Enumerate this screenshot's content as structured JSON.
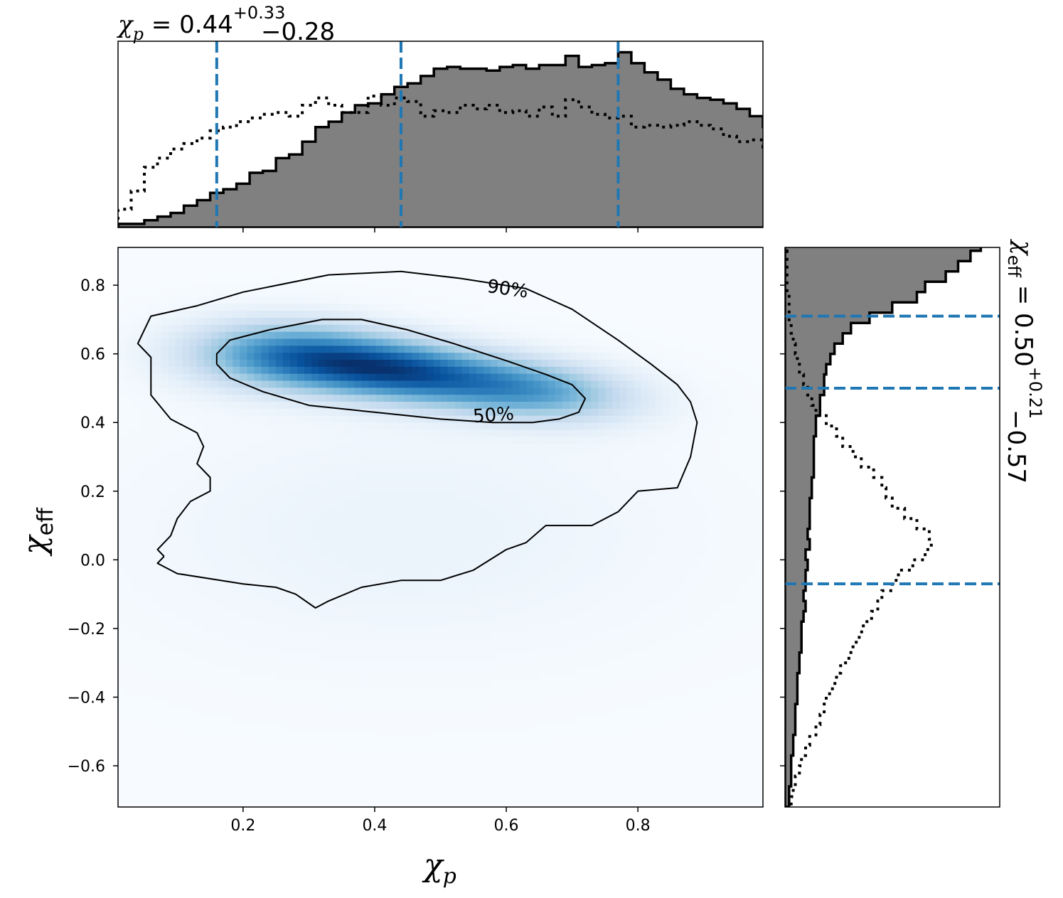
{
  "colors": {
    "histogram_fill": "#808080",
    "histogram_edge": "#000000",
    "prior_line": "#000000",
    "quantile_line": "#1f77b4",
    "density_cmap": [
      "#f7fbff",
      "#deebf7",
      "#c6dbef",
      "#9ecae1",
      "#6baed6",
      "#4292c6",
      "#2171b5",
      "#08519c",
      "#08306b"
    ]
  },
  "chart_data": [
    {
      "name": "joint",
      "type": "heatmap",
      "xlabel_main": "χ",
      "xlabel_sub": "p",
      "ylabel_main": "χ",
      "ylabel_sub": "eff",
      "xlim": [
        0.01,
        0.99
      ],
      "ylim": [
        -0.72,
        0.91
      ],
      "xticks": [
        0.2,
        0.4,
        0.6,
        0.8
      ],
      "yticks": [
        -0.6,
        -0.4,
        -0.2,
        0.0,
        0.2,
        0.4,
        0.6,
        0.8
      ],
      "ytick_labels": [
        "−0.6",
        "−0.4",
        "−0.2",
        "0.0",
        "0.2",
        "0.4",
        "0.6",
        "0.8"
      ],
      "xtick_labels": [
        "0.2",
        "0.4",
        "0.6",
        "0.8"
      ],
      "contours": [
        {
          "label": "90%",
          "label_at": [
            0.57,
            0.78
          ],
          "points": [
            [
              0.08,
              0.01
            ],
            [
              0.07,
              -0.01
            ],
            [
              0.1,
              -0.04
            ],
            [
              0.2,
              -0.07
            ],
            [
              0.25,
              -0.08
            ],
            [
              0.28,
              -0.1
            ],
            [
              0.31,
              -0.14
            ],
            [
              0.33,
              -0.12
            ],
            [
              0.38,
              -0.08
            ],
            [
              0.44,
              -0.06
            ],
            [
              0.5,
              -0.06
            ],
            [
              0.55,
              -0.03
            ],
            [
              0.6,
              0.03
            ],
            [
              0.63,
              0.05
            ],
            [
              0.66,
              0.1
            ],
            [
              0.73,
              0.1
            ],
            [
              0.77,
              0.14
            ],
            [
              0.8,
              0.2
            ],
            [
              0.86,
              0.21
            ],
            [
              0.88,
              0.3
            ],
            [
              0.89,
              0.4
            ],
            [
              0.88,
              0.46
            ],
            [
              0.86,
              0.51
            ],
            [
              0.82,
              0.57
            ],
            [
              0.77,
              0.64
            ],
            [
              0.7,
              0.73
            ],
            [
              0.63,
              0.79
            ],
            [
              0.53,
              0.82
            ],
            [
              0.44,
              0.84
            ],
            [
              0.33,
              0.83
            ],
            [
              0.2,
              0.78
            ],
            [
              0.13,
              0.74
            ],
            [
              0.06,
              0.71
            ],
            [
              0.04,
              0.63
            ],
            [
              0.06,
              0.59
            ],
            [
              0.06,
              0.48
            ],
            [
              0.09,
              0.41
            ],
            [
              0.13,
              0.37
            ],
            [
              0.14,
              0.33
            ],
            [
              0.13,
              0.28
            ],
            [
              0.15,
              0.24
            ],
            [
              0.15,
              0.2
            ],
            [
              0.12,
              0.17
            ],
            [
              0.1,
              0.12
            ],
            [
              0.09,
              0.07
            ],
            [
              0.07,
              0.03
            ],
            [
              0.08,
              0.01
            ]
          ]
        },
        {
          "label": "50%",
          "label_at": [
            0.55,
            0.4
          ],
          "points": [
            [
              0.16,
              0.57
            ],
            [
              0.18,
              0.53
            ],
            [
              0.23,
              0.49
            ],
            [
              0.3,
              0.45
            ],
            [
              0.4,
              0.43
            ],
            [
              0.5,
              0.41
            ],
            [
              0.58,
              0.4
            ],
            [
              0.64,
              0.4
            ],
            [
              0.68,
              0.41
            ],
            [
              0.71,
              0.43
            ],
            [
              0.72,
              0.47
            ],
            [
              0.7,
              0.51
            ],
            [
              0.66,
              0.54
            ],
            [
              0.6,
              0.58
            ],
            [
              0.52,
              0.63
            ],
            [
              0.45,
              0.67
            ],
            [
              0.38,
              0.7
            ],
            [
              0.32,
              0.7
            ],
            [
              0.24,
              0.67
            ],
            [
              0.18,
              0.64
            ],
            [
              0.16,
              0.6
            ],
            [
              0.16,
              0.57
            ]
          ]
        }
      ],
      "density_components": [
        {
          "mx": 0.42,
          "my": 0.555,
          "sx": 0.13,
          "sy": 0.065,
          "w": 1.0,
          "rho": -0.35
        },
        {
          "mx": 0.25,
          "my": 0.6,
          "sx": 0.1,
          "sy": 0.07,
          "w": 0.45,
          "rho": 0.0
        },
        {
          "mx": 0.65,
          "my": 0.49,
          "sx": 0.1,
          "sy": 0.06,
          "w": 0.5,
          "rho": -0.2
        },
        {
          "mx": 0.45,
          "my": 0.08,
          "sx": 0.3,
          "sy": 0.25,
          "w": 0.07,
          "rho": 0.0
        }
      ]
    },
    {
      "name": "chi_p_marginal",
      "type": "bar",
      "title_main": "χ",
      "title_sub": "p",
      "title_value": " = 0.44",
      "title_upper": "+0.33",
      "title_lower": "−0.28",
      "xlim": [
        0.01,
        0.99
      ],
      "ylim": [
        0,
        1.0
      ],
      "bin_edges_start": 0.01,
      "bin_width": 0.02,
      "posterior_heights": [
        0.02,
        0.02,
        0.04,
        0.06,
        0.08,
        0.12,
        0.15,
        0.19,
        0.21,
        0.24,
        0.3,
        0.31,
        0.38,
        0.4,
        0.47,
        0.55,
        0.58,
        0.63,
        0.67,
        0.68,
        0.73,
        0.77,
        0.79,
        0.83,
        0.87,
        0.88,
        0.87,
        0.87,
        0.86,
        0.88,
        0.89,
        0.87,
        0.89,
        0.89,
        0.94,
        0.88,
        0.89,
        0.9,
        0.96,
        0.9,
        0.85,
        0.81,
        0.76,
        0.73,
        0.71,
        0.7,
        0.68,
        0.65,
        0.61,
        0.55,
        0.49,
        0.47,
        0.42,
        0.39,
        0.37,
        0.33,
        0.32,
        0.29,
        0.27,
        0.23,
        0.2,
        0.16,
        0.15,
        0.12,
        0.1,
        0.09,
        0.07,
        0.06,
        0.05,
        0.04,
        0.03,
        0.02,
        0.02,
        0.01,
        0.01,
        0.01,
        0.0,
        0.0,
        0.0,
        0.0,
        0.0,
        0.0,
        0.0,
        0.0,
        0.0,
        0.0,
        0.0,
        0.0,
        0.0
      ],
      "prior_heights": [
        0.1,
        0.2,
        0.33,
        0.38,
        0.43,
        0.46,
        0.49,
        0.53,
        0.55,
        0.58,
        0.6,
        0.62,
        0.63,
        0.61,
        0.67,
        0.71,
        0.67,
        0.63,
        0.63,
        0.72,
        0.67,
        0.71,
        0.69,
        0.61,
        0.64,
        0.63,
        0.67,
        0.65,
        0.67,
        0.63,
        0.64,
        0.61,
        0.66,
        0.61,
        0.7,
        0.66,
        0.62,
        0.6,
        0.61,
        0.55,
        0.56,
        0.55,
        0.56,
        0.58,
        0.56,
        0.54,
        0.5,
        0.47,
        0.48,
        0.44,
        0.45,
        0.47,
        0.42,
        0.41,
        0.4,
        0.39,
        0.4,
        0.37,
        0.35,
        0.36,
        0.32,
        0.33,
        0.36,
        0.35,
        0.34,
        0.33,
        0.3,
        0.31,
        0.35,
        0.3,
        0.33,
        0.32,
        0.27,
        0.25,
        0.25,
        0.24,
        0.24,
        0.23,
        0.2,
        0.19,
        0.17,
        0.17,
        0.15,
        0.14,
        0.12,
        0.1,
        0.1,
        0.07,
        0.06
      ],
      "quantiles": [
        0.16,
        0.44,
        0.77
      ]
    },
    {
      "name": "chi_eff_marginal",
      "type": "bar",
      "title_main": "χ",
      "title_sub": "eff",
      "title_value": " = 0.50",
      "title_upper": "+0.21",
      "title_lower": "−0.57",
      "ylim": [
        -0.72,
        0.91
      ],
      "bin_edges_start": -0.72,
      "bin_width": 0.03,
      "posterior_widths": [
        0.02,
        0.02,
        0.03,
        0.03,
        0.03,
        0.04,
        0.04,
        0.05,
        0.05,
        0.05,
        0.06,
        0.06,
        0.06,
        0.07,
        0.07,
        0.08,
        0.08,
        0.08,
        0.09,
        0.1,
        0.09,
        0.1,
        0.1,
        0.11,
        0.1,
        0.12,
        0.11,
        0.12,
        0.12,
        0.12,
        0.13,
        0.13,
        0.14,
        0.14,
        0.14,
        0.14,
        0.15,
        0.15,
        0.17,
        0.17,
        0.19,
        0.19,
        0.2,
        0.22,
        0.24,
        0.28,
        0.32,
        0.41,
        0.52,
        0.64,
        0.68,
        0.78,
        0.84,
        0.9,
        0.95,
        0.93,
        0.85,
        0.7,
        0.65,
        0.46,
        0.33,
        0.2,
        0.18,
        0.12,
        0.07,
        0.06,
        0.04,
        0.03,
        0.02,
        0.02,
        0.01,
        0.01,
        0.0,
        0.0,
        0.0,
        0.0,
        0.0,
        0.0,
        0.0,
        0.0
      ],
      "prior_widths": [
        0.03,
        0.04,
        0.05,
        0.07,
        0.08,
        0.1,
        0.12,
        0.15,
        0.17,
        0.19,
        0.2,
        0.23,
        0.25,
        0.27,
        0.31,
        0.33,
        0.36,
        0.38,
        0.42,
        0.45,
        0.47,
        0.52,
        0.55,
        0.62,
        0.68,
        0.71,
        0.7,
        0.64,
        0.58,
        0.52,
        0.49,
        0.47,
        0.43,
        0.37,
        0.33,
        0.28,
        0.25,
        0.2,
        0.15,
        0.13,
        0.11,
        0.09,
        0.07,
        0.06,
        0.05,
        0.04,
        0.03,
        0.02,
        0.02,
        0.02,
        0.01,
        0.01,
        0.01,
        0.01,
        0.0,
        0.0,
        0.0,
        0.0,
        0.0,
        0.0,
        0.0,
        0.0,
        0.0,
        0.0,
        0.0,
        0.0,
        0.0,
        0.0,
        0.0,
        0.0,
        0.0,
        0.0,
        0.0,
        0.0,
        0.0,
        0.0,
        0.0,
        0.0,
        0.0,
        0.0
      ],
      "quantiles": [
        -0.07,
        0.5,
        0.71
      ]
    }
  ]
}
